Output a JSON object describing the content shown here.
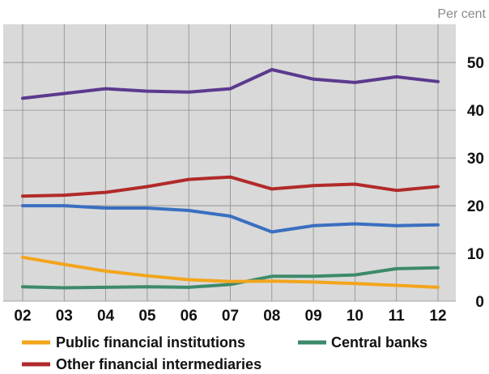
{
  "chart_data": {
    "type": "line",
    "unit_label": "Per cent",
    "x": [
      "02",
      "03",
      "04",
      "05",
      "06",
      "07",
      "08",
      "09",
      "10",
      "11",
      "12"
    ],
    "ylim": [
      0,
      58
    ],
    "yticks": [
      "0",
      "10",
      "20",
      "30",
      "40",
      "50"
    ],
    "ytick_values": [
      0,
      10,
      20,
      30,
      40,
      50
    ],
    "grid": true,
    "background": "#d9d9d9",
    "legend_position": "bottom",
    "series": [
      {
        "name": "",
        "color": "#5b3a8e",
        "values": [
          42.5,
          43.5,
          44.5,
          44,
          43.8,
          44.5,
          48.5,
          46.5,
          45.8,
          47,
          46
        ]
      },
      {
        "name": "Other financial intermediaries",
        "color": "#b22a2a",
        "values": [
          22,
          22.2,
          22.8,
          24,
          25.5,
          26,
          23.5,
          24.2,
          24.5,
          23.2,
          24
        ]
      },
      {
        "name": "",
        "color": "#3a6fc0",
        "values": [
          20,
          20,
          19.5,
          19.5,
          19,
          17.8,
          14.5,
          15.8,
          16.2,
          15.8,
          16
        ]
      },
      {
        "name": "Central banks",
        "color": "#3d8a6a",
        "values": [
          3,
          2.8,
          2.9,
          3,
          2.9,
          3.5,
          5.2,
          5.2,
          5.5,
          6.8,
          7
        ]
      },
      {
        "name": "Public financial institutions",
        "color": "#f2a51c",
        "values": [
          9.2,
          7.7,
          6.3,
          5.3,
          4.5,
          4.1,
          4.2,
          4,
          3.7,
          3.3,
          2.9
        ]
      }
    ]
  },
  "legend": {
    "public_financial_institutions": "Public financial institutions",
    "central_banks": "Central banks",
    "other_financial_intermediaries": "Other financial intermediaries"
  }
}
